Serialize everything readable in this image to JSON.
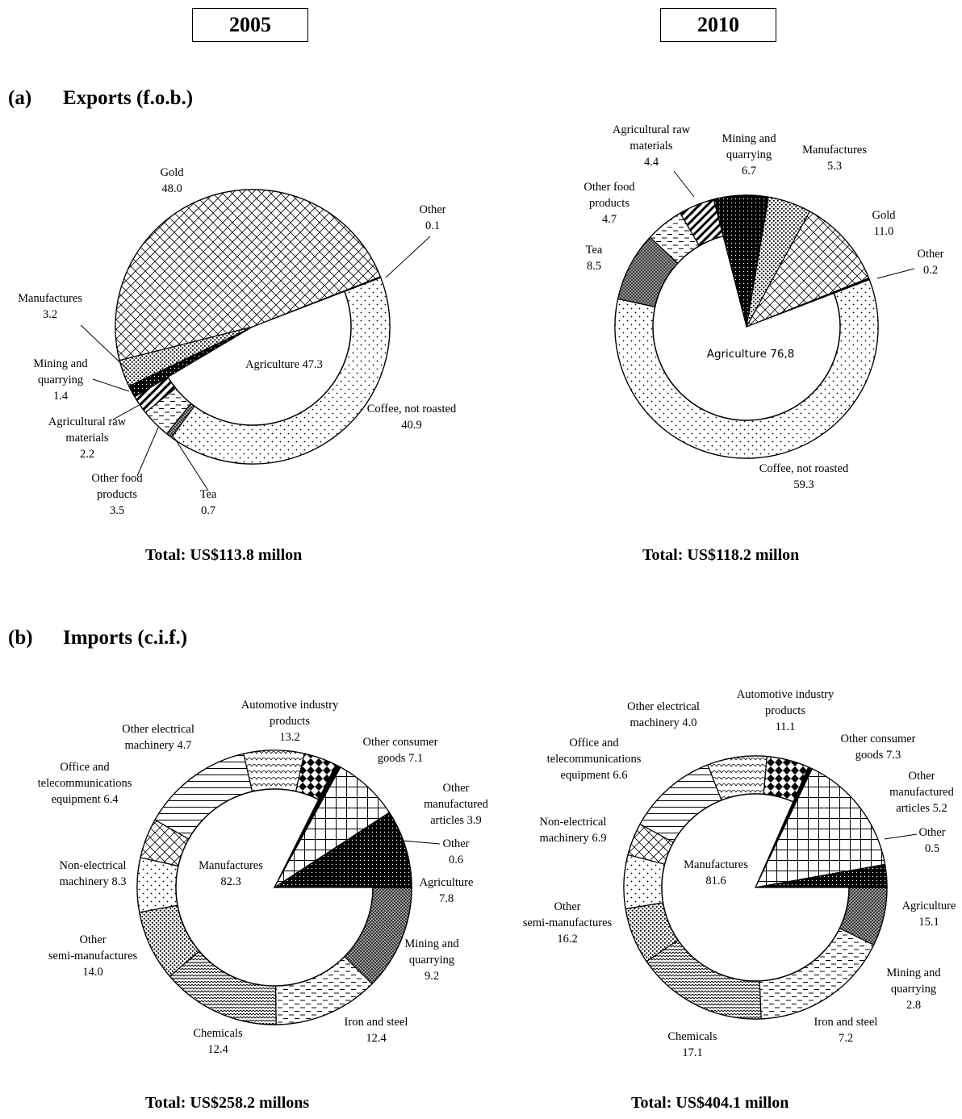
{
  "years": {
    "left": "2005",
    "right": "2010"
  },
  "sections": {
    "exports": {
      "tag": "(a)",
      "label": "Exports (f.o.b.)"
    },
    "imports": {
      "tag": "(b)",
      "label": "Imports (c.i.f.)"
    }
  },
  "chart_data": [
    {
      "type": "pie",
      "year": "2005",
      "flow": "Exports (f.o.b.)",
      "total": "Total:  US$113.8 millon",
      "inner_label": "Agriculture 47.3",
      "inner_value": 47.3,
      "slices": [
        {
          "label": [
            "Coffee, not roasted",
            "40.9"
          ],
          "value": 40.9,
          "ring": "outer",
          "pattern": "dots"
        },
        {
          "label": [
            "Tea",
            "0.7"
          ],
          "value": 0.7,
          "ring": "outer",
          "pattern": "checker"
        },
        {
          "label": [
            "Other food",
            "products",
            "3.5"
          ],
          "value": 3.5,
          "ring": "outer",
          "pattern": "dashes"
        },
        {
          "label": [
            "Agricultural raw",
            "materials",
            "2.2"
          ],
          "value": 2.2,
          "ring": "outer",
          "pattern": "diag"
        },
        {
          "label": [
            "Mining and",
            "quarrying",
            "1.4"
          ],
          "value": 1.4,
          "ring": "full",
          "pattern": "dark"
        },
        {
          "label": [
            "Manufactures",
            "3.2"
          ],
          "value": 3.2,
          "ring": "full",
          "pattern": "densedots"
        },
        {
          "label": [
            "Gold",
            "48.0"
          ],
          "value": 48.0,
          "ring": "full",
          "pattern": "cross"
        },
        {
          "label": [
            "Other",
            "0.1"
          ],
          "value": 0.1,
          "ring": "full",
          "pattern": "solid"
        }
      ]
    },
    {
      "type": "pie",
      "year": "2010",
      "flow": "Exports (f.o.b.)",
      "total": "Total: US$118.2 millon",
      "inner_label": "Agriculture  76,8",
      "inner_value": 76.8,
      "slices": [
        {
          "label": [
            "Coffee, not roasted",
            "59.3"
          ],
          "value": 59.3,
          "ring": "outer",
          "pattern": "dots"
        },
        {
          "label": [
            "Tea",
            "8.5"
          ],
          "value": 8.5,
          "ring": "outer",
          "pattern": "checker"
        },
        {
          "label": [
            "Other food",
            "products",
            "4.7"
          ],
          "value": 4.7,
          "ring": "outer",
          "pattern": "dashes"
        },
        {
          "label": [
            "Agricultural raw",
            "materials",
            "4.4"
          ],
          "value": 4.4,
          "ring": "outer",
          "pattern": "diag"
        },
        {
          "label": [
            "Mining and",
            "quarrying",
            "6.7"
          ],
          "value": 6.7,
          "ring": "full",
          "pattern": "dark"
        },
        {
          "label": [
            "Manufactures",
            "5.3"
          ],
          "value": 5.3,
          "ring": "full",
          "pattern": "densedots"
        },
        {
          "label": [
            "Gold",
            "11.0"
          ],
          "value": 11.0,
          "ring": "full",
          "pattern": "cross"
        },
        {
          "label": [
            "Other",
            "0.2"
          ],
          "value": 0.2,
          "ring": "full",
          "pattern": "solid"
        }
      ]
    },
    {
      "type": "pie",
      "year": "2005",
      "flow": "Imports (c.i.f.)",
      "total": "Total:   US$258.2 millons",
      "inner_label": [
        "Manufactures",
        "82.3"
      ],
      "inner_value": 82.3,
      "slices": [
        {
          "label": [
            "Iron and steel",
            "12.4"
          ],
          "value": 12.4,
          "ring": "outer",
          "pattern": "checker"
        },
        {
          "label": [
            "Chemicals",
            "12.4"
          ],
          "value": 12.4,
          "ring": "outer",
          "pattern": "dashes"
        },
        {
          "label": [
            "Other",
            "semi-manufactures",
            "14.0"
          ],
          "value": 14.0,
          "ring": "outer",
          "pattern": "zigzag"
        },
        {
          "label": [
            "Non-electrical",
            "machinery 8.3"
          ],
          "value": 8.3,
          "ring": "outer",
          "pattern": "densedots"
        },
        {
          "label": [
            "Office and",
            "telecommunications",
            "equipment 6.4"
          ],
          "value": 6.4,
          "ring": "outer",
          "pattern": "dots"
        },
        {
          "label": [
            "Other electrical",
            "machinery 4.7"
          ],
          "value": 4.7,
          "ring": "outer",
          "pattern": "cross"
        },
        {
          "label": [
            "Automotive industry",
            "products",
            "13.2"
          ],
          "value": 13.2,
          "ring": "outer",
          "pattern": "hlines"
        },
        {
          "label": [
            "Other consumer",
            "goods 7.1"
          ],
          "value": 7.1,
          "ring": "outer",
          "pattern": "scales"
        },
        {
          "label": [
            "Other",
            "manufactured",
            "articles 3.9"
          ],
          "value": 3.9,
          "ring": "outer",
          "pattern": "diamonds"
        },
        {
          "label": [
            "Other",
            "0.6"
          ],
          "value": 0.6,
          "ring": "full",
          "pattern": "solid"
        },
        {
          "label": [
            "Agriculture",
            "7.8"
          ],
          "value": 7.8,
          "ring": "full",
          "pattern": "grid"
        },
        {
          "label": [
            "Mining and",
            "quarrying",
            "9.2"
          ],
          "value": 9.2,
          "ring": "full",
          "pattern": "dark"
        }
      ]
    },
    {
      "type": "pie",
      "year": "2010",
      "flow": "Imports (c.i.f.)",
      "total": "Total:   US$404.1 millon",
      "inner_label": [
        "Manufactures",
        "81.6"
      ],
      "inner_value": 81.6,
      "slices": [
        {
          "label": [
            "Iron and steel",
            "7.2"
          ],
          "value": 7.2,
          "ring": "outer",
          "pattern": "checker"
        },
        {
          "label": [
            "Chemicals",
            "17.1"
          ],
          "value": 17.1,
          "ring": "outer",
          "pattern": "dashes"
        },
        {
          "label": [
            "Other",
            "semi-manufactures",
            "16.2"
          ],
          "value": 16.2,
          "ring": "outer",
          "pattern": "zigzag"
        },
        {
          "label": [
            "Non-electrical",
            "machinery 6.9"
          ],
          "value": 6.9,
          "ring": "outer",
          "pattern": "densedots"
        },
        {
          "label": [
            "Office and",
            "telecommunications",
            "equipment 6.6"
          ],
          "value": 6.6,
          "ring": "outer",
          "pattern": "dots"
        },
        {
          "label": [
            "Other electrical",
            "machinery 4.0"
          ],
          "value": 4.0,
          "ring": "outer",
          "pattern": "cross"
        },
        {
          "label": [
            "Automotive industry",
            "products",
            "11.1"
          ],
          "value": 11.1,
          "ring": "outer",
          "pattern": "hlines"
        },
        {
          "label": [
            "Other consumer",
            "goods 7.3"
          ],
          "value": 7.3,
          "ring": "outer",
          "pattern": "scales"
        },
        {
          "label": [
            "Other",
            "manufactured",
            "articles 5.2"
          ],
          "value": 5.2,
          "ring": "outer",
          "pattern": "diamonds"
        },
        {
          "label": [
            "Other",
            "0.5"
          ],
          "value": 0.5,
          "ring": "full",
          "pattern": "solid"
        },
        {
          "label": [
            "Agriculture",
            "15.1"
          ],
          "value": 15.1,
          "ring": "full",
          "pattern": "grid"
        },
        {
          "label": [
            "Mining and",
            "quarrying",
            "2.8"
          ],
          "value": 2.8,
          "ring": "full",
          "pattern": "dark"
        }
      ]
    }
  ]
}
